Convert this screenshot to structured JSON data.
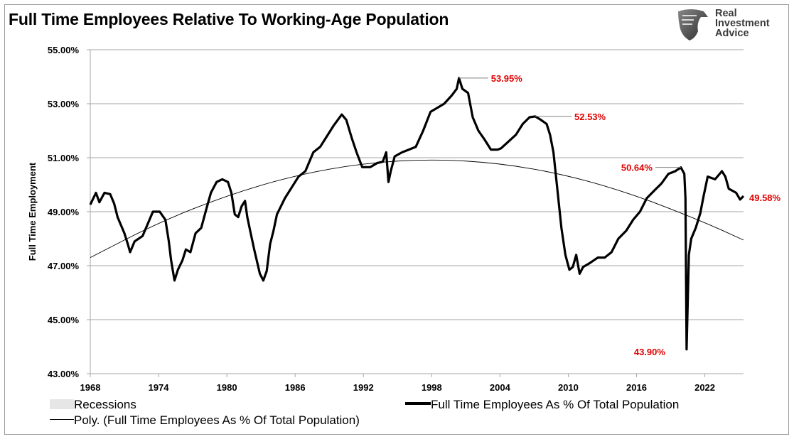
{
  "title": "Full Time Employees Relative To Working-Age Population",
  "logo": {
    "lines": [
      "Real",
      "Investment",
      "Advice"
    ],
    "icon": "eagle-shield-icon"
  },
  "chart_data": {
    "type": "line",
    "title": "Full Time Employees Relative To Working-Age Population",
    "ylabel": "Full Time Employment",
    "xlabel": "",
    "xlim": [
      1968,
      2025.4
    ],
    "ylim": [
      43,
      55
    ],
    "yticks": [
      43,
      45,
      47,
      49,
      51,
      53,
      55
    ],
    "ytick_labels": [
      "43.00%",
      "45.00%",
      "47.00%",
      "49.00%",
      "51.00%",
      "53.00%",
      "55.00%"
    ],
    "xticks": [
      1968,
      1974,
      1980,
      1986,
      1992,
      1998,
      2004,
      2010,
      2016,
      2022
    ],
    "xtick_labels": [
      "1968",
      "1974",
      "1980",
      "1986",
      "1992",
      "1998",
      "2004",
      "2010",
      "2016",
      "2022"
    ],
    "grid": "horizontal",
    "legend_position": "bottom",
    "legend": [
      "Recessions",
      "Full Time Employees As % Of Total Population",
      "Poly. (Full Time Employees As % Of Total Population)"
    ],
    "colors": {
      "series": "#000000",
      "trend": "#000000",
      "annotation": "#e00000",
      "grid": "#a6a6a6",
      "recession": "#e6e6e6"
    },
    "series": [
      {
        "name": "Full Time Employees As % Of Total Population",
        "x": [
          1968.0,
          1968.5,
          1968.8,
          1969.25,
          1969.75,
          1970.1,
          1970.4,
          1971.0,
          1971.3,
          1971.5,
          1971.9,
          1972.6,
          1973.2,
          1973.5,
          1974.1,
          1974.6,
          1974.9,
          1975.1,
          1975.4,
          1975.7,
          1976.1,
          1976.4,
          1976.8,
          1977.25,
          1977.75,
          1978.2,
          1978.6,
          1979.1,
          1979.6,
          1980.1,
          1980.4,
          1980.7,
          1981.0,
          1981.3,
          1981.6,
          1981.8,
          1982.1,
          1982.4,
          1982.9,
          1983.2,
          1983.5,
          1983.8,
          1984.1,
          1984.4,
          1984.75,
          1985.1,
          1985.7,
          1986.3,
          1986.9,
          1987.6,
          1988.2,
          1988.8,
          1989.4,
          1990.1,
          1990.5,
          1991.0,
          1991.4,
          1991.9,
          1992.6,
          1993.2,
          1993.7,
          1994.0,
          1994.2,
          1994.4,
          1994.75,
          1995.4,
          1996.0,
          1996.6,
          1997.25,
          1997.9,
          1998.5,
          1999.1,
          1999.75,
          2000.2,
          2000.4,
          2000.7,
          2001.2,
          2001.6,
          2002.1,
          2002.6,
          2003.2,
          2003.8,
          2004.1,
          2004.75,
          2005.4,
          2006.0,
          2006.6,
          2007.1,
          2007.6,
          2008.1,
          2008.4,
          2008.7,
          2009.0,
          2009.4,
          2009.75,
          2010.1,
          2010.4,
          2010.7,
          2011.0,
          2011.3,
          2011.9,
          2012.6,
          2013.2,
          2013.8,
          2014.4,
          2015.1,
          2015.7,
          2016.3,
          2016.9,
          2017.6,
          2018.2,
          2018.8,
          2019.4,
          2019.9,
          2020.2,
          2020.3,
          2020.4,
          2020.6,
          2020.8,
          2021.2,
          2021.6,
          2021.9,
          2022.25,
          2022.9,
          2023.5,
          2023.8,
          2024.1,
          2024.75,
          2025.1,
          2025.4
        ],
        "y": [
          49.26,
          49.7,
          49.35,
          49.7,
          49.65,
          49.3,
          48.8,
          48.2,
          47.8,
          47.5,
          47.9,
          48.1,
          48.7,
          49.0,
          49.0,
          48.7,
          47.9,
          47.2,
          46.45,
          46.85,
          47.2,
          47.6,
          47.5,
          48.2,
          48.4,
          49.1,
          49.7,
          50.1,
          50.2,
          50.1,
          49.7,
          48.9,
          48.8,
          49.2,
          49.4,
          48.8,
          48.2,
          47.6,
          46.7,
          46.45,
          46.8,
          47.8,
          48.3,
          48.9,
          49.2,
          49.5,
          49.9,
          50.3,
          50.5,
          51.2,
          51.4,
          51.8,
          52.2,
          52.6,
          52.4,
          51.7,
          51.2,
          50.65,
          50.65,
          50.8,
          50.85,
          51.2,
          50.1,
          50.5,
          51.05,
          51.2,
          51.3,
          51.4,
          52.0,
          52.7,
          52.85,
          53.0,
          53.3,
          53.55,
          53.95,
          53.55,
          53.4,
          52.5,
          52.0,
          51.7,
          51.3,
          51.3,
          51.35,
          51.6,
          51.85,
          52.25,
          52.5,
          52.53,
          52.4,
          52.25,
          51.85,
          51.2,
          50.0,
          48.4,
          47.4,
          46.85,
          46.95,
          47.4,
          46.7,
          46.95,
          47.1,
          47.3,
          47.3,
          47.5,
          48.0,
          48.3,
          48.7,
          49.0,
          49.5,
          49.8,
          50.05,
          50.4,
          50.5,
          50.64,
          50.4,
          49.5,
          43.9,
          47.4,
          48.0,
          48.4,
          48.95,
          49.6,
          50.3,
          50.2,
          50.5,
          50.3,
          49.85,
          49.7,
          49.45,
          49.58
        ]
      },
      {
        "name": "Poly. (Full Time Employees As % Of Total Population)",
        "x": [
          1968,
          1974,
          1980,
          1986,
          1992,
          1998,
          2004,
          2010,
          2016,
          2022,
          2025.4
        ],
        "y": [
          47.3,
          48.6,
          49.6,
          50.35,
          50.8,
          50.95,
          50.8,
          50.35,
          49.6,
          48.6,
          47.95
        ]
      }
    ],
    "annotations": [
      {
        "label": "53.95%",
        "x": 2000.4,
        "y": 53.95
      },
      {
        "label": "52.53%",
        "x": 2007.1,
        "y": 52.53
      },
      {
        "label": "50.64%",
        "x": 2019.9,
        "y": 50.64
      },
      {
        "label": "43.90%",
        "x": 2020.4,
        "y": 43.9
      },
      {
        "label": "49.58%",
        "x": 2025.4,
        "y": 49.58
      }
    ]
  }
}
